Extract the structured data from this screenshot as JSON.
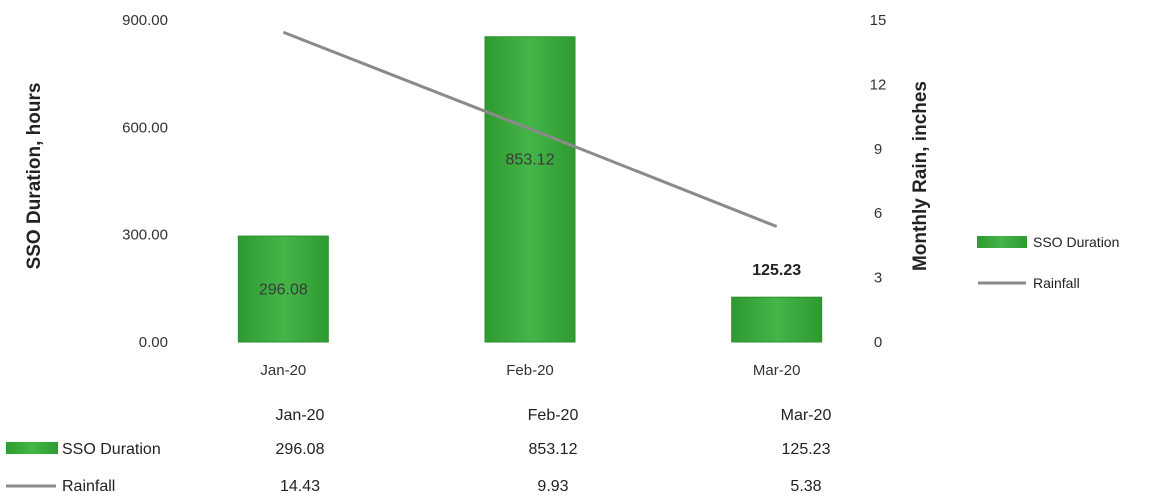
{
  "chart_data": {
    "type": "bar",
    "categories": [
      "Jan-20",
      "Feb-20",
      "Mar-20"
    ],
    "series": [
      {
        "name": "SSO Duration",
        "kind": "bar",
        "axis": "left",
        "values": [
          296.08,
          853.12,
          125.23
        ],
        "color": "#3aa83a"
      },
      {
        "name": "Rainfall",
        "kind": "line",
        "axis": "right",
        "values": [
          14.43,
          9.93,
          5.38
        ],
        "color": "#8a8a8a"
      }
    ],
    "ylabel": "SSO Duration, hours",
    "y2label": "Monthly Rain, inches",
    "ylim": [
      0,
      900
    ],
    "y2lim": [
      0,
      15
    ],
    "yticks": [
      "0.00",
      "300.00",
      "600.00",
      "900.00"
    ],
    "y2ticks": [
      "0",
      "3",
      "6",
      "9",
      "12",
      "15"
    ],
    "data_labels": [
      "296.08",
      "853.12",
      "125.23"
    ],
    "legend": {
      "placement": "right",
      "items": [
        "SSO Duration",
        "Rainfall"
      ]
    },
    "data_table": {
      "headers": [
        "Jan-20",
        "Feb-20",
        "Mar-20"
      ],
      "rows": [
        {
          "label": "SSO Duration",
          "values": [
            "296.08",
            "853.12",
            "125.23"
          ]
        },
        {
          "label": "Rainfall",
          "values": [
            "14.43",
            "9.93",
            "5.38"
          ]
        }
      ]
    },
    "grid": false
  }
}
